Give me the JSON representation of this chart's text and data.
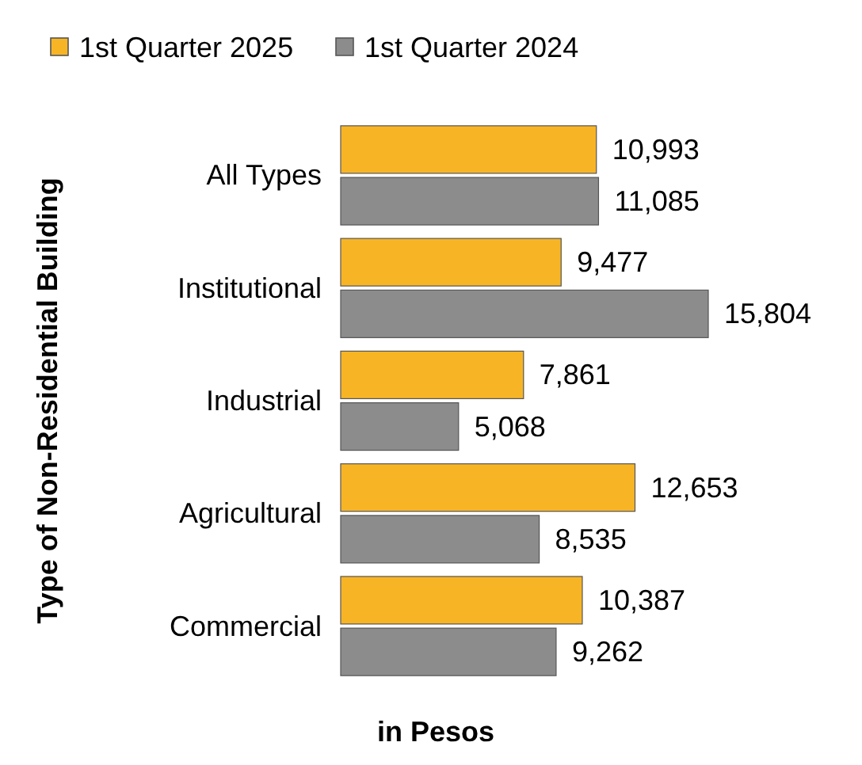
{
  "chart_data": {
    "type": "bar",
    "orientation": "horizontal",
    "ylabel": "Type of Non-Residential Building",
    "xlabel": "in Pesos",
    "categories": [
      "All Types",
      "Institutional",
      "Industrial",
      "Agricultural",
      "Commercial"
    ],
    "series": [
      {
        "name": "1st Quarter 2025",
        "color": "#f7b526",
        "values": [
          10993,
          9477,
          7861,
          12653,
          10387
        ],
        "value_labels": [
          "10,993",
          "9,477",
          "7,861",
          "12,653",
          "10,387"
        ]
      },
      {
        "name": "1st Quarter 2024",
        "color": "#8c8c8c",
        "values": [
          11085,
          15804,
          5068,
          8535,
          9262
        ],
        "value_labels": [
          "11,085",
          "15,804",
          "5,068",
          "8,535",
          "9,262"
        ]
      }
    ],
    "tick_labels": "y",
    "legend": "top"
  }
}
